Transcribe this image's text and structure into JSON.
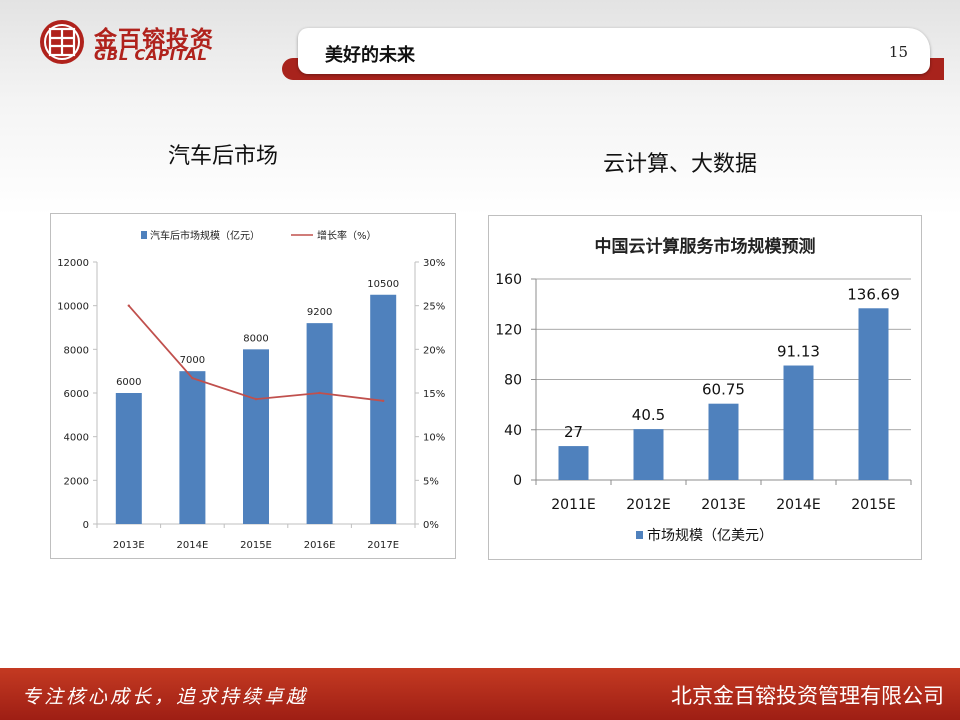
{
  "header": {
    "logo_cn": "金百镕投资",
    "logo_en": "GBL CAPITAL",
    "title": "美好的未来",
    "page_number": "15"
  },
  "sections": {
    "left_title": "汽车后市场",
    "right_title": "云计算、大数据"
  },
  "footer": {
    "slogan": "专注核心成长，追求持续卓越",
    "company": "北京金百镕投资管理有限公司"
  },
  "colors": {
    "bar": "#4f81bd",
    "line": "#c0504d",
    "brand_red": "#b0221c"
  },
  "chart_data": [
    {
      "type": "bar",
      "title": "",
      "categories": [
        "2013E",
        "2014E",
        "2015E",
        "2016E",
        "2017E"
      ],
      "series": [
        {
          "name": "汽车后市场规模（亿元）",
          "type": "bar",
          "axis": "left",
          "values": [
            6000,
            7000,
            8000,
            9200,
            10500
          ]
        },
        {
          "name": "增长率（%）",
          "type": "line",
          "axis": "right",
          "values": [
            25,
            16.7,
            14.3,
            15,
            14.1
          ]
        }
      ],
      "data_labels": [
        "6000",
        "7000",
        "8000",
        "9200",
        "10500"
      ],
      "ylim": [
        0,
        12000
      ],
      "y_ticks": [
        "0",
        "2000",
        "4000",
        "6000",
        "8000",
        "10000",
        "12000"
      ],
      "y2lim": [
        0,
        30
      ],
      "y2_ticks": [
        "0%",
        "5%",
        "10%",
        "15%",
        "20%",
        "25%",
        "30%"
      ],
      "legend": "top",
      "grid": false
    },
    {
      "type": "bar",
      "title": "中国云计算服务市场规模预测",
      "categories": [
        "2011E",
        "2012E",
        "2013E",
        "2014E",
        "2015E"
      ],
      "series": [
        {
          "name": "市场规模（亿美元）",
          "values": [
            27,
            40.5,
            60.75,
            91.13,
            136.69
          ]
        }
      ],
      "data_labels": [
        "27",
        "40.5",
        "60.75",
        "91.13",
        "136.69"
      ],
      "ylim": [
        0,
        160
      ],
      "y_ticks": [
        "0",
        "40",
        "80",
        "120",
        "160"
      ],
      "legend": "bottom",
      "grid": true
    }
  ]
}
